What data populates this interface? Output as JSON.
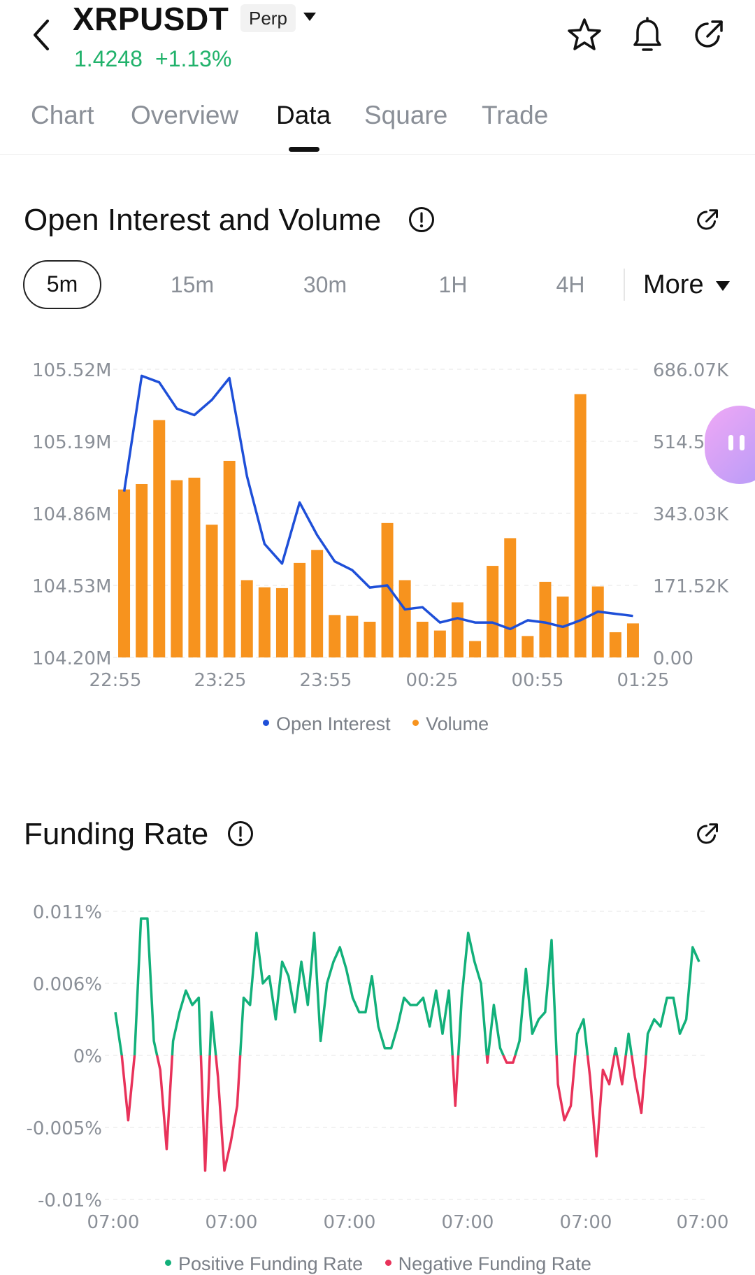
{
  "header": {
    "symbol": "XRPUSDT",
    "contract_type": "Perp",
    "price": "1.4248",
    "change": "+1.13%",
    "icons": [
      "back-arrow-icon",
      "caret-down-icon",
      "star-icon",
      "bell-icon",
      "share-icon"
    ]
  },
  "tabs": [
    {
      "label": "Chart"
    },
    {
      "label": "Overview"
    },
    {
      "label": "Data",
      "active": true
    },
    {
      "label": "Square"
    },
    {
      "label": "Trade"
    }
  ],
  "oi_section": {
    "title": "Open Interest and Volume",
    "intervals": [
      "5m",
      "15m",
      "30m",
      "1H",
      "4H"
    ],
    "selected_interval": "5m",
    "more_label": "More"
  },
  "funding_section": {
    "title": "Funding Rate"
  },
  "colors": {
    "accent_green": "#21b26b",
    "open_interest": "#1e4fd8",
    "volume": "#f7931e",
    "positive_funding": "#12b07a",
    "negative_funding": "#e8325a"
  },
  "chart_data": [
    {
      "type": "bar",
      "series": [
        {
          "name": "Open Interest",
          "type": "line",
          "axis": "left",
          "values": [
            104.96,
            105.49,
            105.46,
            105.34,
            105.31,
            105.38,
            105.48,
            105.03,
            104.72,
            104.63,
            104.91,
            104.76,
            104.64,
            104.6,
            104.52,
            104.53,
            104.42,
            104.43,
            104.36,
            104.38,
            104.36,
            104.36,
            104.33,
            104.37,
            104.36,
            104.34,
            104.37,
            104.41,
            104.4,
            104.39
          ]
        },
        {
          "name": "Volume",
          "type": "bar",
          "axis": "right",
          "values": [
            400000,
            413000,
            565000,
            422000,
            428000,
            316000,
            468000,
            184000,
            167000,
            165000,
            225000,
            256000,
            101000,
            99000,
            85000,
            320000,
            184000,
            85000,
            64000,
            131000,
            39000,
            218000,
            284000,
            51000,
            180000,
            145000,
            627000,
            169000,
            60000,
            81000
          ]
        }
      ],
      "x_tick_labels": [
        "22:55",
        "23:25",
        "23:55",
        "00:25",
        "00:55",
        "01:25"
      ],
      "y_left_ticks": [
        "105.52M",
        "105.19M",
        "104.86M",
        "104.53M",
        "104.20M"
      ],
      "y_right_ticks": [
        "686.07K",
        "514.55K",
        "343.03K",
        "171.52K",
        "0.00"
      ],
      "y_left_range": [
        104.2,
        105.52
      ],
      "y_right_range": [
        0,
        686070
      ],
      "legend": [
        "Open Interest",
        "Volume"
      ],
      "legend_position": "bottom",
      "grid": true
    },
    {
      "type": "line",
      "series": [
        {
          "name": "Funding Rate",
          "values": [
            0.003,
            0,
            -0.0045,
            0,
            0.0095,
            0.0095,
            0.001,
            -0.001,
            -0.0065,
            0.001,
            0.003,
            0.0045,
            0.0035,
            0.004,
            -0.008,
            0.003,
            -0.0015,
            -0.008,
            -0.006,
            -0.0035,
            0.004,
            0.0035,
            0.0085,
            0.005,
            0.0055,
            0.0025,
            0.0065,
            0.0055,
            0.003,
            0.0065,
            0.0035,
            0.0085,
            0.001,
            0.005,
            0.0065,
            0.0075,
            0.006,
            0.004,
            0.003,
            0.003,
            0.0055,
            0.002,
            0.0005,
            0.0005,
            0.002,
            0.004,
            0.0035,
            0.0035,
            0.004,
            0.002,
            0.0045,
            0.0015,
            0.0045,
            -0.0035,
            0.004,
            0.0085,
            0.0065,
            0.005,
            -0.0005,
            0.0035,
            0.0005,
            -0.0005,
            -0.0005,
            0.001,
            0.006,
            0.0015,
            0.0025,
            0.003,
            0.008,
            -0.002,
            -0.0045,
            -0.0035,
            0.0015,
            0.0025,
            -0.0015,
            -0.007,
            -0.001,
            -0.002,
            0.0005,
            -0.002,
            0.0015,
            -0.0015,
            -0.004,
            0.0015,
            0.0025,
            0.002,
            0.004,
            0.004,
            0.0015,
            0.0025,
            0.0075,
            0.0065
          ]
        }
      ],
      "x_tick_labels": [
        "07:00",
        "07:00",
        "07:00",
        "07:00",
        "07:00",
        "07:00"
      ],
      "y_ticks": [
        "0.011%",
        "0.006%",
        "0%",
        "-0.005%",
        "-0.01%"
      ],
      "y_range": [
        -0.01,
        0.01
      ],
      "legend": [
        "Positive Funding Rate",
        "Negative Funding Rate"
      ],
      "legend_position": "bottom",
      "grid": true
    }
  ]
}
